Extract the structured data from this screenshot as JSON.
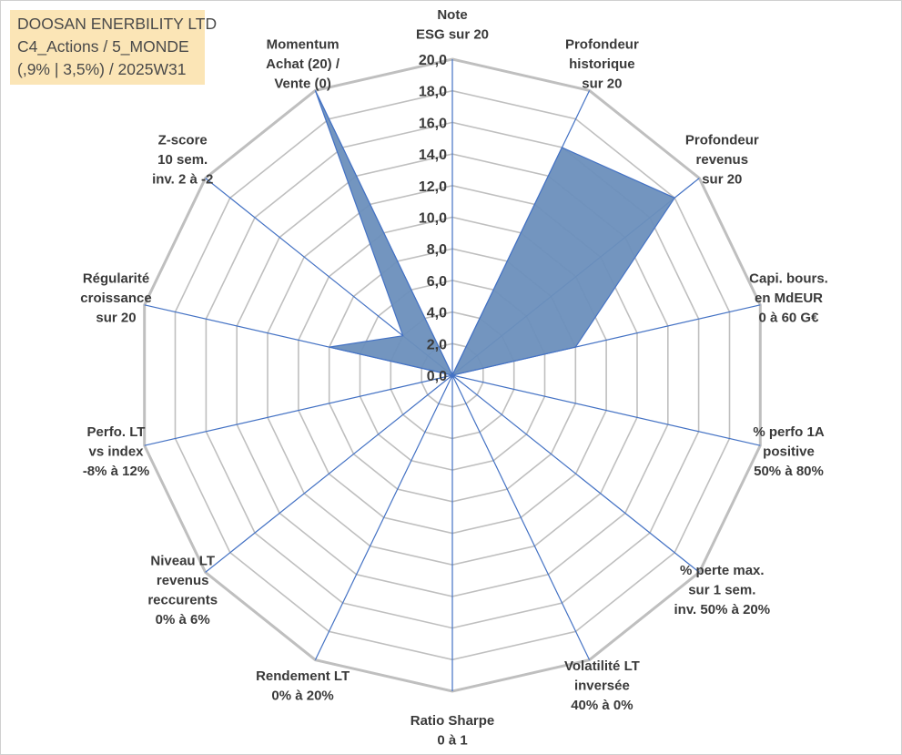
{
  "title": {
    "line1": "DOOSAN ENERBILITY LTD",
    "line2": "C4_Actions / 5_MONDE",
    "line3": "(,9% | 3,5%) / 2025W31"
  },
  "chart_data": {
    "type": "radar",
    "rmin": 0,
    "rmax": 20,
    "ticks": [
      "0,0",
      "2,0",
      "4,0",
      "6,0",
      "8,0",
      "10,0",
      "12,0",
      "14,0",
      "16,0",
      "18,0",
      "20,0"
    ],
    "axes": [
      [
        "Note",
        "ESG sur 20"
      ],
      [
        "Profondeur",
        "historique",
        "sur 20"
      ],
      [
        "Profondeur",
        "revenus",
        "sur 20"
      ],
      [
        "Capi. bours.",
        "en MdEUR",
        "0 à 60 G€"
      ],
      [
        "% perfo 1A",
        "positive",
        "50% à 80%"
      ],
      [
        "% perte max.",
        "sur 1 sem.",
        "inv. 50% à 20%"
      ],
      [
        "Volatilité LT",
        "inversée",
        "40% à 0%"
      ],
      [
        "Ratio Sharpe",
        "0 à 1"
      ],
      [
        "Rendement LT",
        "0% à 20%"
      ],
      [
        "Niveau LT",
        "revenus",
        "reccurents",
        "0% à 6%"
      ],
      [
        "Perfo. LT",
        "vs index",
        "-8% à 12%"
      ],
      [
        "Régularité",
        "croissance",
        "sur 20"
      ],
      [
        "Z-score",
        "10 sem.",
        "inv. 2 à -2"
      ],
      [
        "Momentum",
        "Achat (20) /",
        "Vente (0)"
      ]
    ],
    "series": [
      {
        "values": [
          0,
          16,
          18,
          8,
          0,
          0,
          0,
          0,
          0,
          0,
          0,
          8,
          4,
          20
        ]
      }
    ],
    "colors": {
      "fill": "#6b8fbc",
      "line": "#4472c4",
      "grid": "#bfbfbf",
      "spoke": "#4472c4"
    }
  }
}
